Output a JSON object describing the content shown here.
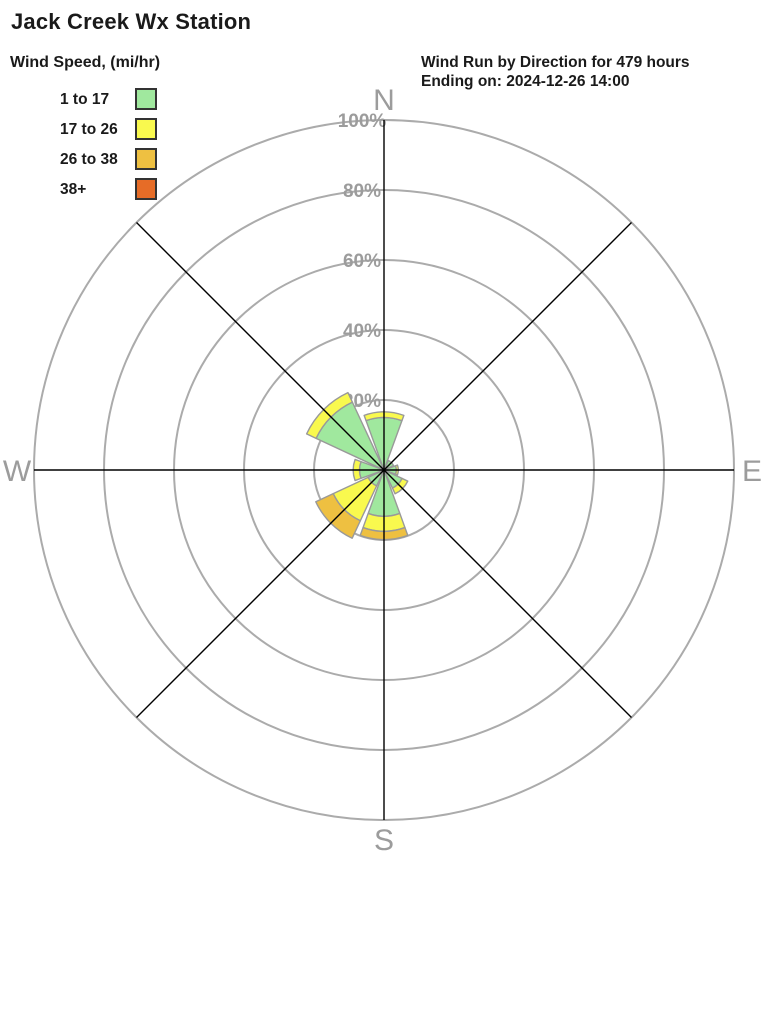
{
  "header": {
    "title": "Jack Creek Wx Station",
    "plot_title": "Wind Run by Direction for 479 hours",
    "plot_subtitle": "Ending on: 2024-12-26 14:00"
  },
  "legend": {
    "title": "Wind Speed, (mi/hr)",
    "items": [
      {
        "label": "1 to 17",
        "color": "#a0e89e"
      },
      {
        "label": "17 to 26",
        "color": "#f9f94e"
      },
      {
        "label": "26 to 38",
        "color": "#eec041"
      },
      {
        "label": "38+",
        "color": "#e66c27"
      }
    ]
  },
  "chart_data": {
    "type": "windrose",
    "title": "Wind Run by Direction for 479 hours",
    "subtitle": "Ending on: 2024-12-26 14:00",
    "station": "Jack Creek Wx Station",
    "units": "percent of wind run",
    "speed_bins_mihr": [
      "1 to 17",
      "17 to 26",
      "26 to 38",
      "38+"
    ],
    "bin_colors": [
      "#a0e89e",
      "#f9f94e",
      "#eec041",
      "#e66c27"
    ],
    "directions": [
      "N",
      "NE",
      "E",
      "SE",
      "S",
      "SW",
      "W",
      "NW"
    ],
    "series": [
      {
        "direction": "N",
        "values": [
          15.0,
          1.6,
          0,
          0
        ]
      },
      {
        "direction": "NE",
        "values": [
          3.0,
          0,
          0,
          0
        ]
      },
      {
        "direction": "E",
        "values": [
          3.5,
          0.6,
          0,
          0
        ]
      },
      {
        "direction": "SE",
        "values": [
          5.7,
          1.8,
          0,
          0
        ]
      },
      {
        "direction": "S",
        "values": [
          13.2,
          4.3,
          2.4,
          0
        ]
      },
      {
        "direction": "SW",
        "values": [
          5.0,
          11.0,
          5.5,
          0
        ]
      },
      {
        "direction": "W",
        "values": [
          7.0,
          1.8,
          0,
          0
        ]
      },
      {
        "direction": "NW",
        "values": [
          21.4,
          3.0,
          0,
          0
        ]
      }
    ],
    "ring_percent": [
      20,
      40,
      60,
      80,
      100
    ],
    "ring_labels": [
      "20%",
      "40%",
      "60%",
      "80%",
      "100%"
    ],
    "compass_labels": [
      "N",
      "E",
      "S",
      "W"
    ],
    "petal_width_deg": 40,
    "axis_max_percent": 100,
    "grid_on": true,
    "legend_position": "top-left",
    "colors": {
      "ring": "#ababab",
      "spoke": "#000000",
      "axis_label": "#9c9c9c",
      "petal_outline": "#999999"
    }
  }
}
